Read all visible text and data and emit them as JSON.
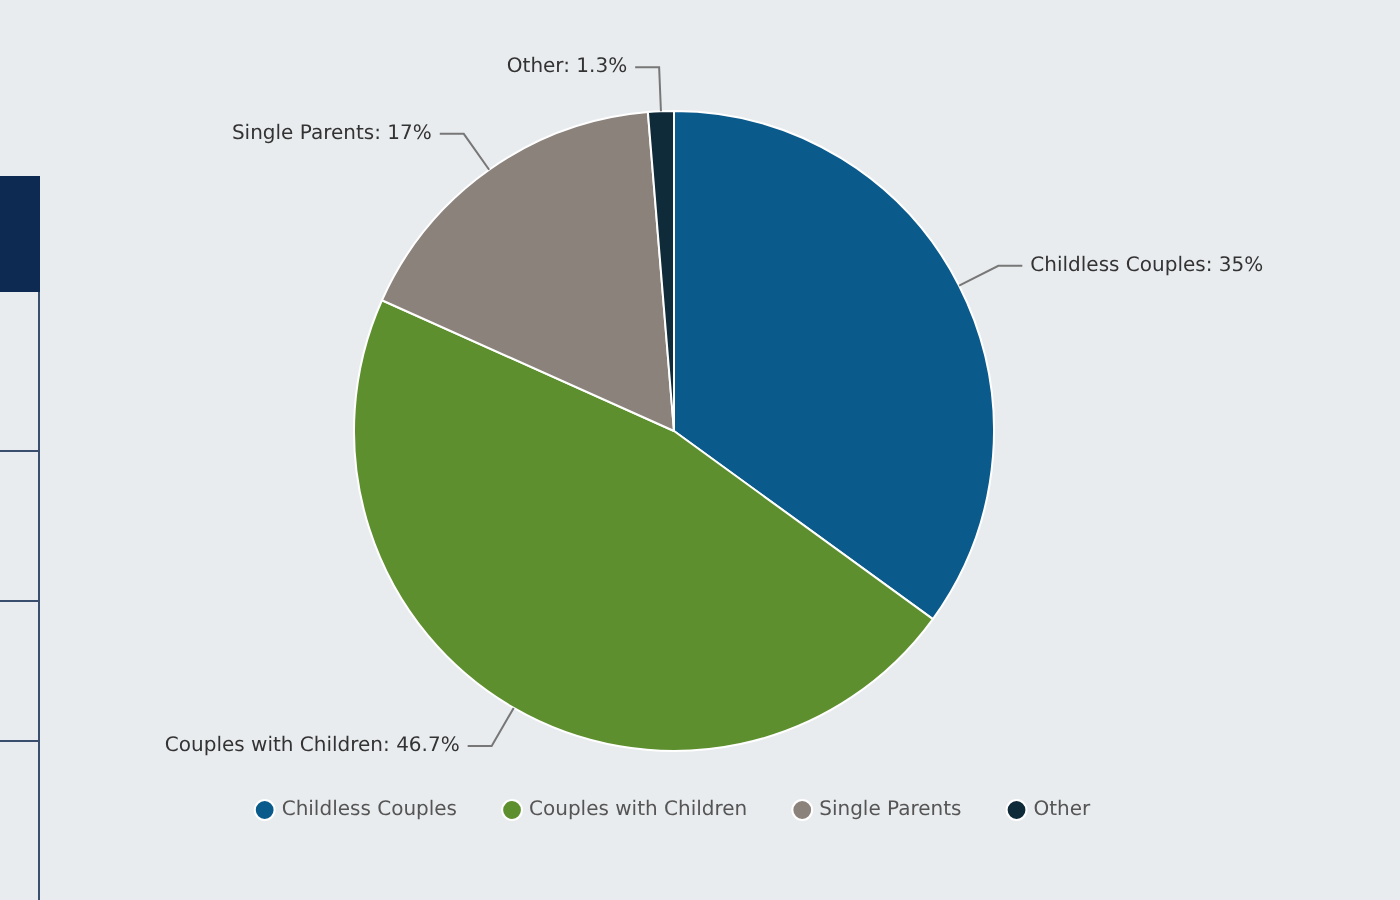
{
  "chart_data": {
    "type": "pie",
    "categories": [
      "Childless Couples",
      "Couples with Children",
      "Single Parents",
      "Other"
    ],
    "values": [
      35,
      46.7,
      17,
      1.3
    ],
    "colors": [
      "#0b5a8c",
      "#5e8f2f",
      "#8b827b",
      "#0f2a38"
    ],
    "value_labels": [
      "Childless Couples: 35%",
      "Couples with Children: 46.7%",
      "Single Parents: 17%",
      "Other: 1.3%"
    ],
    "legend": "bottom"
  }
}
